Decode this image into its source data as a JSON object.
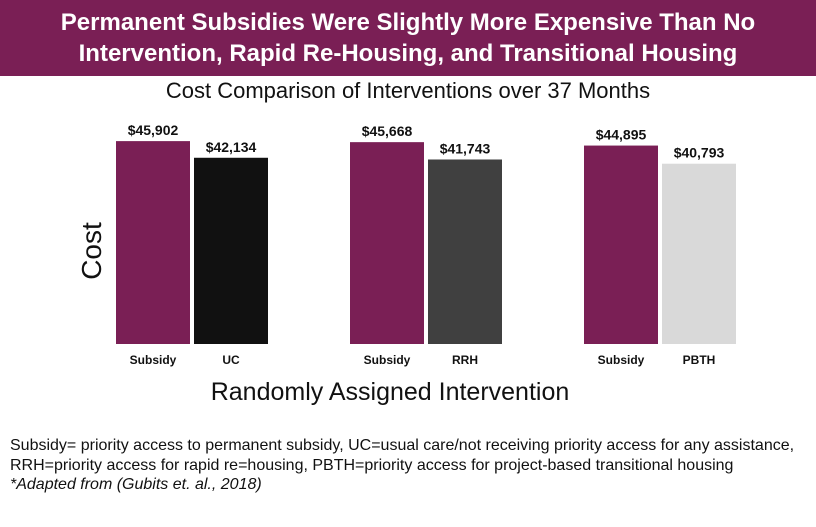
{
  "banner": {
    "line1": "Permanent Subsidies Were Slightly More Expensive Than No",
    "line2": "Intervention, Rapid Re-Housing, and Transitional Housing"
  },
  "chart_data": {
    "type": "bar",
    "title": "Cost Comparison of Interventions over 37 Months",
    "xlabel": "Randomly Assigned Intervention",
    "ylabel": "Cost",
    "ylim": [
      0,
      50000
    ],
    "grid": false,
    "legend": "none",
    "groups": [
      {
        "bars": [
          {
            "category": "Subsidy",
            "value": 45902,
            "label": "$45,902",
            "color": "#7a1f55"
          },
          {
            "category": "UC",
            "value": 42134,
            "label": "$42,134",
            "color": "#111111"
          }
        ]
      },
      {
        "bars": [
          {
            "category": "Subsidy",
            "value": 45668,
            "label": "$45,668",
            "color": "#7a1f55"
          },
          {
            "category": "RRH",
            "value": 41743,
            "label": "$41,743",
            "color": "#404040"
          }
        ]
      },
      {
        "bars": [
          {
            "category": "Subsidy",
            "value": 44895,
            "label": "$44,895",
            "color": "#7a1f55"
          },
          {
            "category": "PBTH",
            "value": 40793,
            "label": "$40,793",
            "color": "#d9d9d9"
          }
        ]
      }
    ]
  },
  "footnote": {
    "text": "Subsidy= priority access to permanent subsidy, UC=usual care/not receiving priority access for any assistance, RRH=priority access for rapid re=housing, PBTH=priority access for project-based transitional housing",
    "source": "*Adapted from (Gubits et. al., 2018)"
  }
}
